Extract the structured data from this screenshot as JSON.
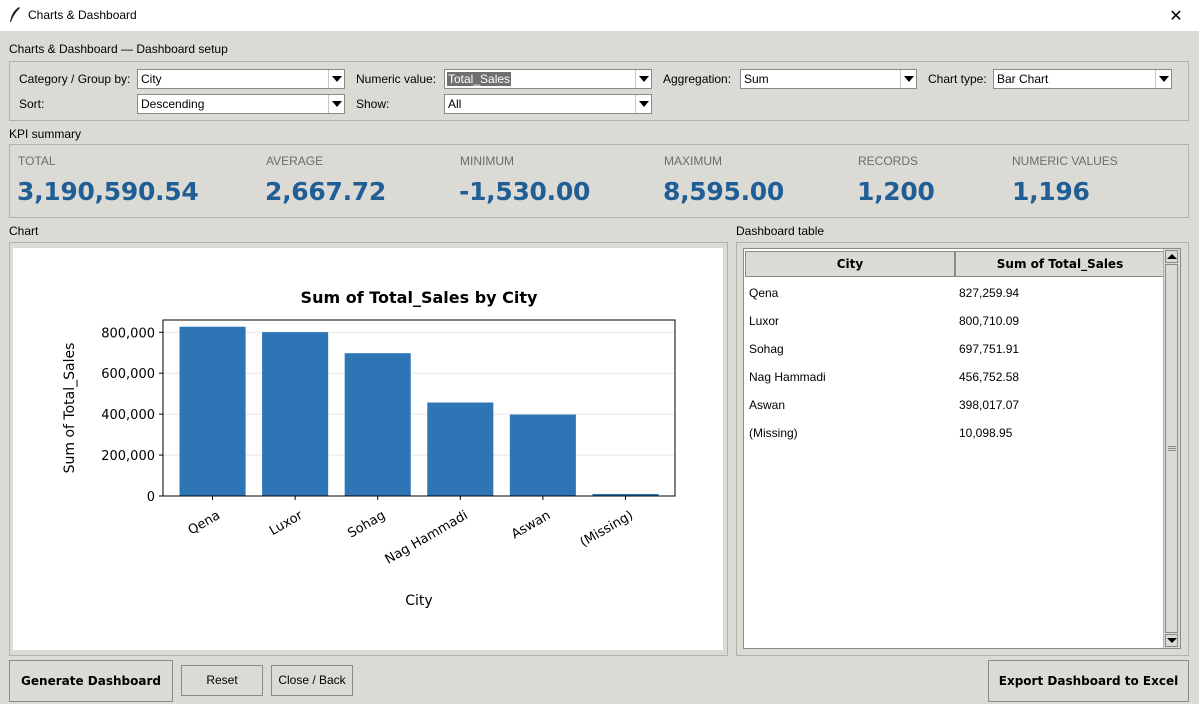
{
  "window": {
    "title": "Charts & Dashboard",
    "close_glyph": "✕"
  },
  "setup": {
    "heading": "Charts & Dashboard — Dashboard setup",
    "category_label": "Category / Group by:",
    "category_value": "City",
    "numeric_label": "Numeric value:",
    "numeric_value": "Total_Sales",
    "aggregation_label": "Aggregation:",
    "aggregation_value": "Sum",
    "charttype_label": "Chart type:",
    "charttype_value": "Bar Chart",
    "sort_label": "Sort:",
    "sort_value": "Descending",
    "show_label": "Show:",
    "show_value": "All"
  },
  "kpi": {
    "heading": "KPI summary",
    "total_label": "TOTAL",
    "total_value": "3,190,590.54",
    "average_label": "AVERAGE",
    "average_value": "2,667.72",
    "minimum_label": "MINIMUM",
    "minimum_value": "-1,530.00",
    "maximum_label": "MAXIMUM",
    "maximum_value": "8,595.00",
    "records_label": "RECORDS",
    "records_value": "1,200",
    "numeric_label": "NUMERIC VALUES",
    "numeric_value": "1,196"
  },
  "chart_heading": "Chart",
  "chart_data": {
    "type": "bar",
    "title": "Sum of Total_Sales by City",
    "xlabel": "City",
    "ylabel": "Sum of Total_Sales",
    "categories": [
      "Qena",
      "Luxor",
      "Sohag",
      "Nag Hammadi",
      "Aswan",
      "(Missing)"
    ],
    "values": [
      827259.94,
      800710.09,
      697751.91,
      456752.58,
      398017.07,
      10098.95
    ],
    "ylim": [
      0,
      860000
    ],
    "yticks": [
      0,
      200000,
      400000,
      600000,
      800000
    ],
    "ytick_labels": [
      "0",
      "200,000",
      "400,000",
      "600,000",
      "800,000"
    ],
    "bar_color": "#2e75b6",
    "grid": true
  },
  "table": {
    "heading": "Dashboard table",
    "columns": [
      "City",
      "Sum of Total_Sales"
    ],
    "rows": [
      [
        "Qena",
        "827,259.94"
      ],
      [
        "Luxor",
        "800,710.09"
      ],
      [
        "Sohag",
        "697,751.91"
      ],
      [
        "Nag Hammadi",
        "456,752.58"
      ],
      [
        "Aswan",
        "398,017.07"
      ],
      [
        "(Missing)",
        "10,098.95"
      ]
    ]
  },
  "buttons": {
    "generate": "Generate Dashboard",
    "reset": "Reset",
    "close": "Close / Back",
    "export": "Export Dashboard to Excel"
  },
  "colors": {
    "kpi_value": "#1f5f96",
    "bar": "#2e75b6",
    "panel": "#dcdad5"
  }
}
